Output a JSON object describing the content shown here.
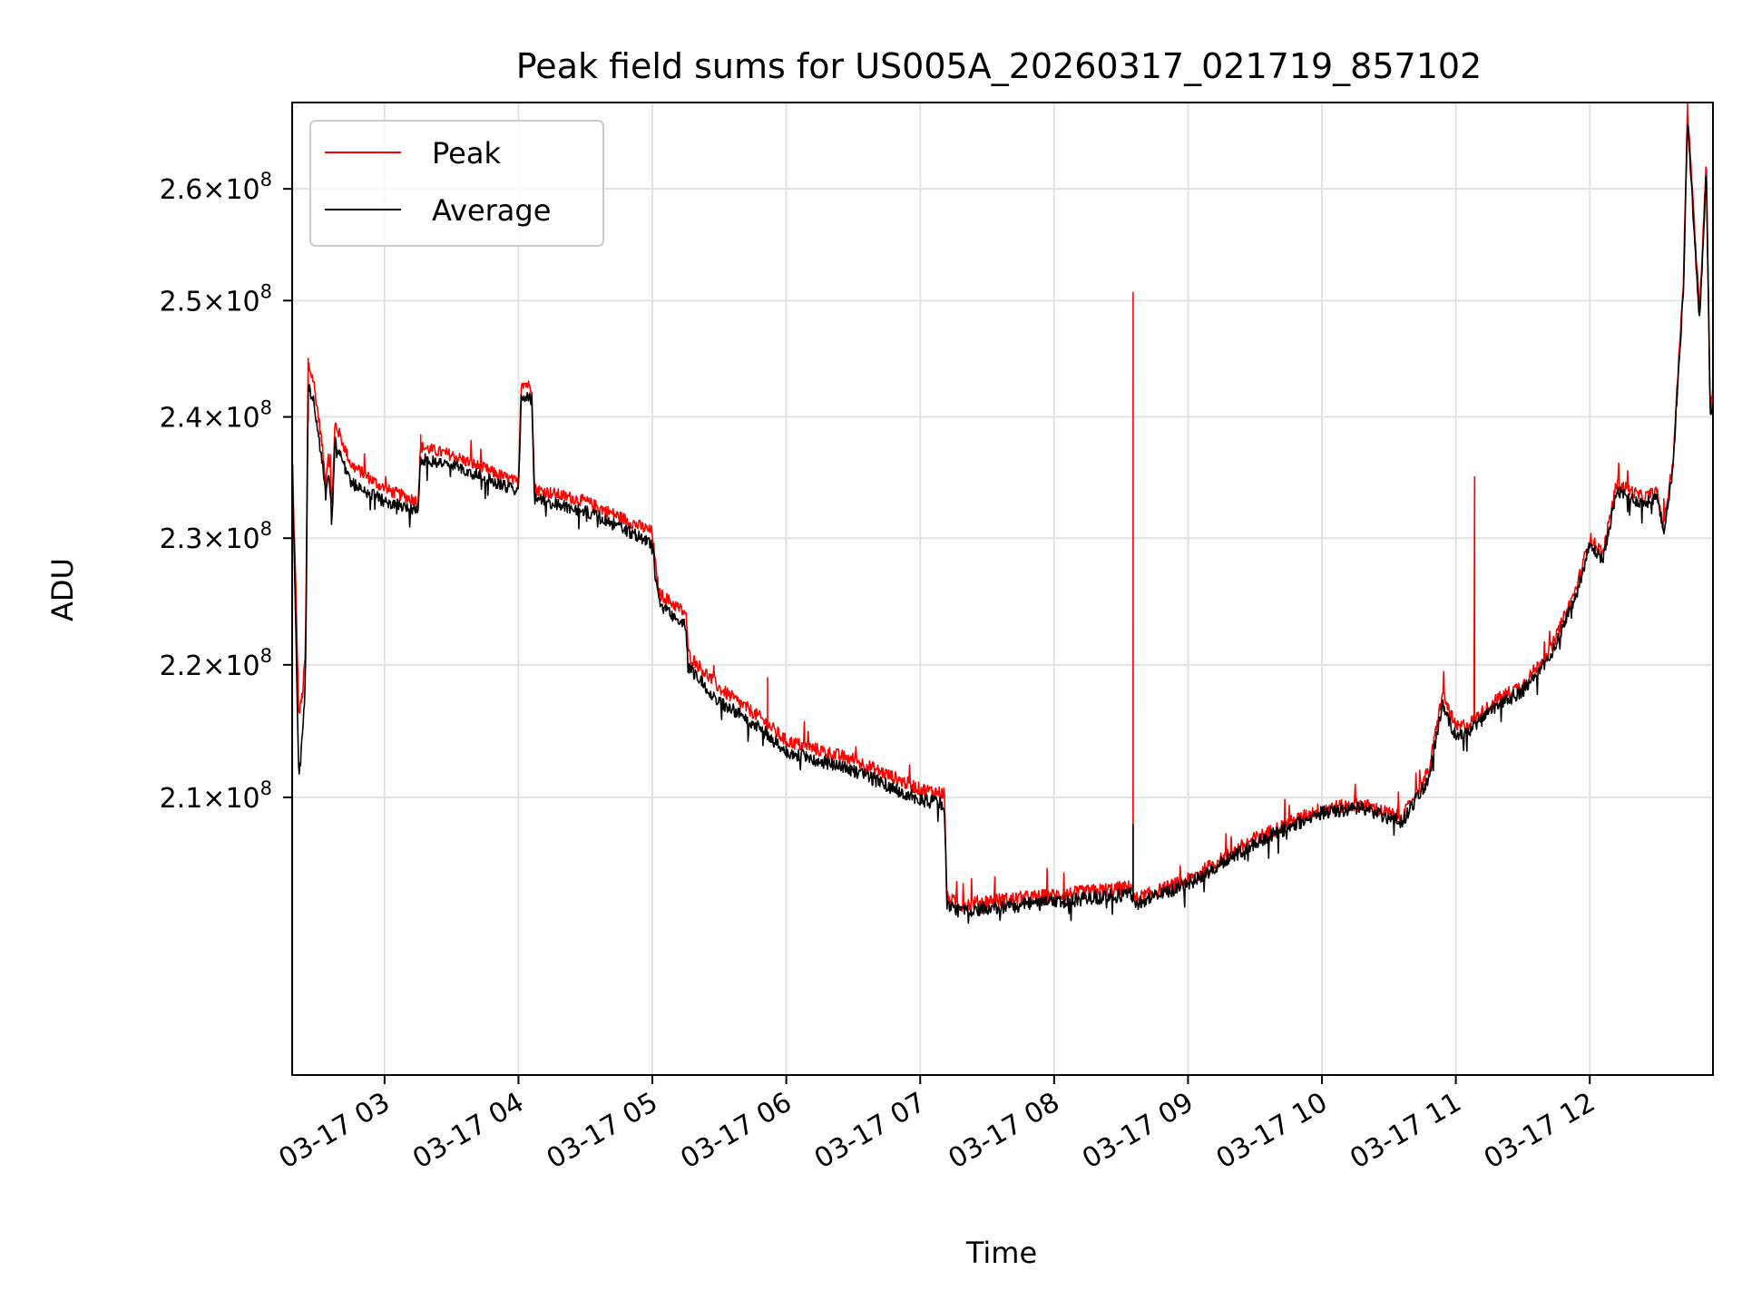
{
  "chart_data": {
    "type": "line",
    "title": "Peak field sums for US005A_20260317_021719_857102",
    "xlabel": "Time",
    "ylabel": "ADU",
    "y_scale": "log",
    "xlim_hours": [
      2.31,
      12.92
    ],
    "ylim": [
      190500000,
      268000000
    ],
    "grid": true,
    "legend_position": "upper-left",
    "x_ticks": [
      {
        "hour": 3,
        "label": "03-17 03"
      },
      {
        "hour": 4,
        "label": "03-17 04"
      },
      {
        "hour": 5,
        "label": "03-17 05"
      },
      {
        "hour": 6,
        "label": "03-17 06"
      },
      {
        "hour": 7,
        "label": "03-17 07"
      },
      {
        "hour": 8,
        "label": "03-17 08"
      },
      {
        "hour": 9,
        "label": "03-17 09"
      },
      {
        "hour": 10,
        "label": "03-17 10"
      },
      {
        "hour": 11,
        "label": "03-17 11"
      },
      {
        "hour": 12,
        "label": "03-17 12"
      }
    ],
    "y_ticks": [
      {
        "value": 210000000,
        "mantissa": "2.1",
        "exponent": "8"
      },
      {
        "value": 220000000,
        "mantissa": "2.2",
        "exponent": "8"
      },
      {
        "value": 230000000,
        "mantissa": "2.3",
        "exponent": "8"
      },
      {
        "value": 240000000,
        "mantissa": "2.4",
        "exponent": "8"
      },
      {
        "value": 250000000,
        "mantissa": "2.5",
        "exponent": "8"
      },
      {
        "value": 260000000,
        "mantissa": "2.6",
        "exponent": "8"
      }
    ],
    "tick_times_sign": "×",
    "tick_base": "10",
    "series": [
      {
        "name": "Peak",
        "color": "#ff0000",
        "noise": 500000,
        "spikes": [
          {
            "hour": 2.43,
            "value": 245000000
          },
          {
            "hour": 3.27,
            "value": 238500000
          },
          {
            "hour": 5.86,
            "value": 219000000
          },
          {
            "hour": 8.59,
            "value": 250700000
          },
          {
            "hour": 11.14,
            "value": 235000000
          },
          {
            "hour": 12.73,
            "value": 268000000
          }
        ],
        "points": [
          [
            2.31,
            236000000
          ],
          [
            2.33,
            229000000
          ],
          [
            2.36,
            216000000
          ],
          [
            2.39,
            218000000
          ],
          [
            2.41,
            221000000
          ],
          [
            2.43,
            244500000
          ],
          [
            2.47,
            243000000
          ],
          [
            2.53,
            238000000
          ],
          [
            2.56,
            234500000
          ],
          [
            2.58,
            237000000
          ],
          [
            2.61,
            233000000
          ],
          [
            2.63,
            239500000
          ],
          [
            2.75,
            236000000
          ],
          [
            3.0,
            234000000
          ],
          [
            3.25,
            233000000
          ],
          [
            3.27,
            237500000
          ],
          [
            3.5,
            236800000
          ],
          [
            4.0,
            234500000
          ],
          [
            4.02,
            243000000
          ],
          [
            4.1,
            242500000
          ],
          [
            4.12,
            234000000
          ],
          [
            4.5,
            233000000
          ],
          [
            5.0,
            230500000
          ],
          [
            5.02,
            228000000
          ],
          [
            5.05,
            225600000
          ],
          [
            5.25,
            224000000
          ],
          [
            5.27,
            220800000
          ],
          [
            5.5,
            218200000
          ],
          [
            5.8,
            216000000
          ],
          [
            6.0,
            214200000
          ],
          [
            6.5,
            212800000
          ],
          [
            7.0,
            210600000
          ],
          [
            7.18,
            210300000
          ],
          [
            7.2,
            202700000
          ],
          [
            7.3,
            202200000
          ],
          [
            7.5,
            202500000
          ],
          [
            8.0,
            202900000
          ],
          [
            8.58,
            203500000
          ],
          [
            8.6,
            202600000
          ],
          [
            9.0,
            204000000
          ],
          [
            9.5,
            207000000
          ],
          [
            10.0,
            209200000
          ],
          [
            10.3,
            209500000
          ],
          [
            10.6,
            208500000
          ],
          [
            10.8,
            212000000
          ],
          [
            10.9,
            217800000
          ],
          [
            11.0,
            215200000
          ],
          [
            11.1,
            215500000
          ],
          [
            11.3,
            217300000
          ],
          [
            11.5,
            218500000
          ],
          [
            11.7,
            221000000
          ],
          [
            11.9,
            226000000
          ],
          [
            12.0,
            230000000
          ],
          [
            12.1,
            228800000
          ],
          [
            12.2,
            234500000
          ],
          [
            12.4,
            233300000
          ],
          [
            12.5,
            233800000
          ],
          [
            12.55,
            231000000
          ],
          [
            12.62,
            236000000
          ],
          [
            12.7,
            252000000
          ],
          [
            12.73,
            267500000
          ],
          [
            12.78,
            257000000
          ],
          [
            12.82,
            249000000
          ],
          [
            12.87,
            262500000
          ],
          [
            12.9,
            241000000
          ],
          [
            12.92,
            242500000
          ]
        ]
      },
      {
        "name": "Average",
        "color": "#000000",
        "noise": 500000,
        "spikes": [
          {
            "hour": 8.59,
            "value": 208000000
          }
        ],
        "points": [
          [
            2.31,
            235500000
          ],
          [
            2.33,
            227000000
          ],
          [
            2.36,
            211000000
          ],
          [
            2.39,
            215000000
          ],
          [
            2.41,
            219000000
          ],
          [
            2.43,
            242500000
          ],
          [
            2.47,
            241500000
          ],
          [
            2.53,
            236500000
          ],
          [
            2.56,
            233500000
          ],
          [
            2.58,
            235500000
          ],
          [
            2.61,
            232000000
          ],
          [
            2.63,
            238000000
          ],
          [
            2.75,
            234500000
          ],
          [
            3.0,
            233000000
          ],
          [
            3.25,
            232300000
          ],
          [
            3.27,
            236500000
          ],
          [
            3.5,
            236000000
          ],
          [
            4.0,
            233800000
          ],
          [
            4.02,
            241800000
          ],
          [
            4.1,
            241500000
          ],
          [
            4.12,
            233200000
          ],
          [
            4.5,
            232200000
          ],
          [
            5.0,
            229600000
          ],
          [
            5.02,
            227200000
          ],
          [
            5.05,
            224800000
          ],
          [
            5.25,
            223000000
          ],
          [
            5.27,
            219800000
          ],
          [
            5.5,
            217200000
          ],
          [
            5.8,
            215200000
          ],
          [
            6.0,
            213400000
          ],
          [
            6.5,
            212000000
          ],
          [
            7.0,
            209800000
          ],
          [
            7.18,
            209500000
          ],
          [
            7.2,
            202200000
          ],
          [
            7.3,
            201800000
          ],
          [
            7.5,
            202000000
          ],
          [
            8.0,
            202400000
          ],
          [
            8.58,
            203000000
          ],
          [
            8.6,
            202300000
          ],
          [
            9.0,
            203700000
          ],
          [
            9.5,
            206700000
          ],
          [
            10.0,
            208900000
          ],
          [
            10.3,
            209200000
          ],
          [
            10.6,
            208200000
          ],
          [
            10.8,
            211400000
          ],
          [
            10.9,
            217000000
          ],
          [
            11.0,
            214500000
          ],
          [
            11.1,
            214900000
          ],
          [
            11.3,
            216800000
          ],
          [
            11.5,
            218000000
          ],
          [
            11.7,
            220500000
          ],
          [
            11.9,
            225500000
          ],
          [
            12.0,
            229400000
          ],
          [
            12.1,
            228300000
          ],
          [
            12.2,
            233800000
          ],
          [
            12.4,
            232800000
          ],
          [
            12.5,
            233300000
          ],
          [
            12.55,
            230500000
          ],
          [
            12.62,
            235500000
          ],
          [
            12.7,
            251000000
          ],
          [
            12.73,
            266500000
          ],
          [
            12.78,
            256000000
          ],
          [
            12.82,
            248000000
          ],
          [
            12.87,
            261500000
          ],
          [
            12.9,
            240000000
          ],
          [
            12.92,
            241800000
          ]
        ]
      }
    ]
  }
}
